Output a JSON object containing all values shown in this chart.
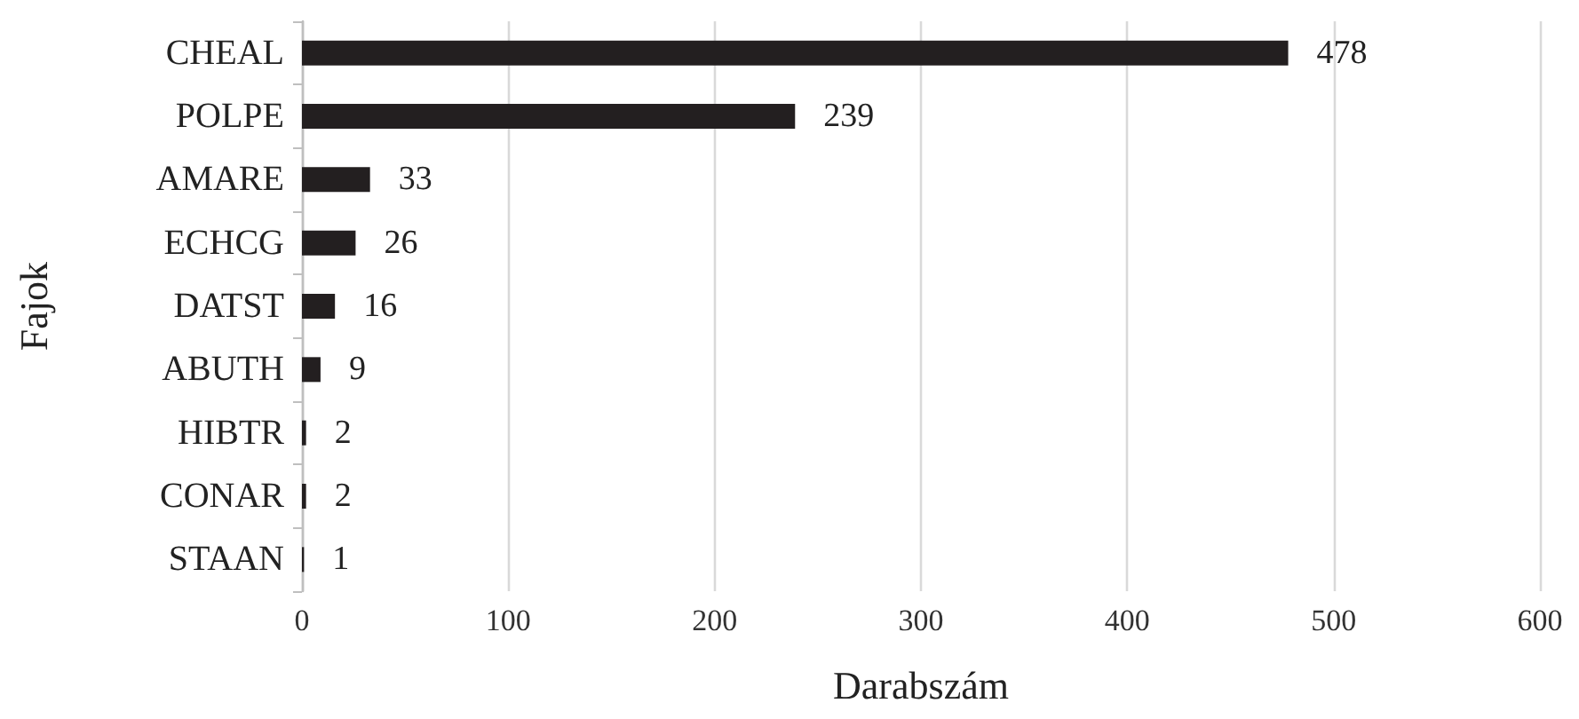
{
  "chart_data": {
    "type": "bar",
    "orientation": "horizontal",
    "xlabel": "Darabszám",
    "ylabel": "Fajok",
    "categories": [
      "CHEAL",
      "POLPE",
      "AMARE",
      "ECHCG",
      "DATST",
      "ABUTH",
      "HIBTR",
      "CONAR",
      "STAAN"
    ],
    "values": [
      478,
      239,
      33,
      26,
      16,
      9,
      2,
      2,
      1
    ],
    "color": "#231f20",
    "xlim": [
      0,
      600
    ],
    "xticks": [
      0,
      100,
      200,
      300,
      400,
      500,
      600
    ],
    "grid": "x",
    "data_labels": true
  }
}
